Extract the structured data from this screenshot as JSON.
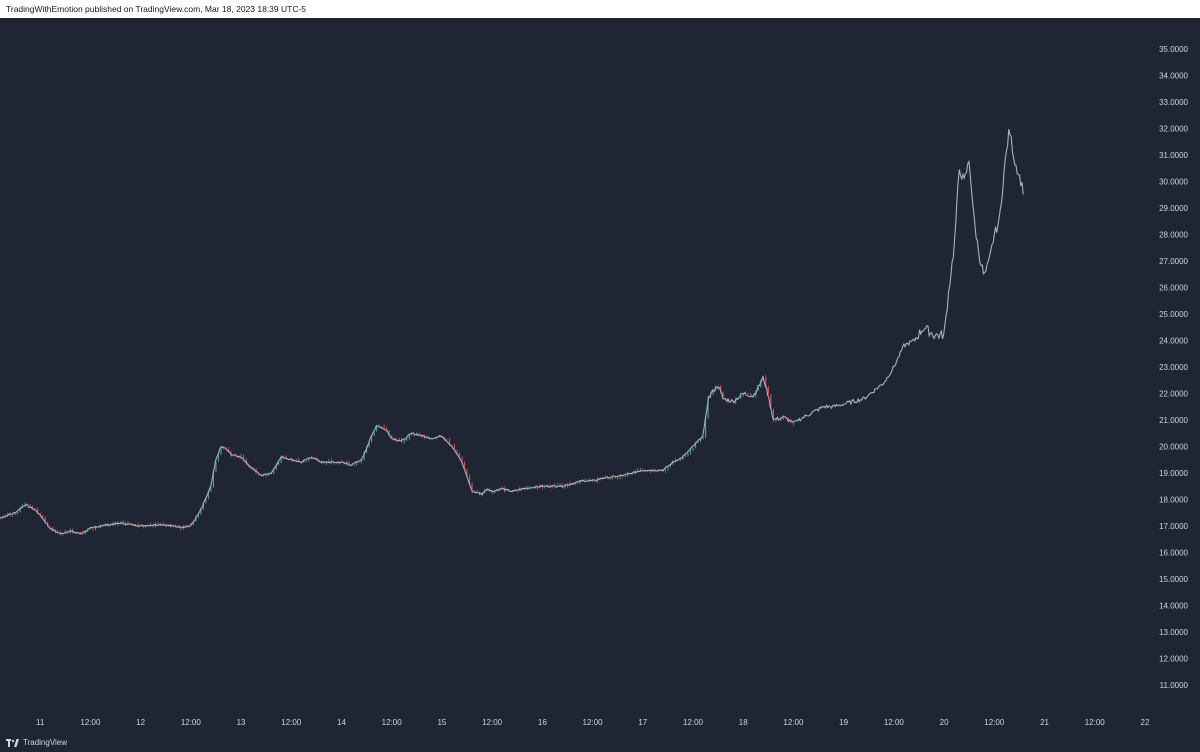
{
  "header": {
    "text": "TradingWithEmotion published on TradingView.com, Mar 18, 2023 18:39 UTC-5"
  },
  "footer": {
    "brand": "TradingView",
    "logo_icon": "tradingview-logo-icon"
  },
  "colors": {
    "background": "#1f2532",
    "up": "#4fa07a",
    "down": "#d4504f",
    "line": "#a9b0bf",
    "text": "#d1d4dc"
  },
  "chart_data": {
    "type": "line",
    "candles_overlay": "candlestick segment (green up / red down) from day 11 to day 18 afternoon",
    "y_axis": {
      "range": [
        10.5,
        35.4
      ],
      "ticks": [
        "35.0000",
        "34.0000",
        "33.0000",
        "32.0000",
        "31.0000",
        "30.0000",
        "29.0000",
        "28.0000",
        "27.0000",
        "26.0000",
        "25.0000",
        "24.0000",
        "23.0000",
        "22.0000",
        "21.0000",
        "20.0000",
        "19.0000",
        "18.0000",
        "17.0000",
        "16.0000",
        "15.0000",
        "14.0000",
        "13.0000",
        "12.0000",
        "11.0000"
      ],
      "tick_values": [
        35,
        34,
        33,
        32,
        31,
        30,
        29,
        28,
        27,
        26,
        25,
        24,
        23,
        22,
        21,
        20,
        19,
        18,
        17,
        16,
        15,
        14,
        13,
        12,
        11
      ]
    },
    "x_axis": {
      "range": [
        10.6,
        22.05
      ],
      "ticks": [
        "11",
        "12:00",
        "12",
        "12:00",
        "13",
        "12:00",
        "14",
        "12:00",
        "15",
        "12:00",
        "16",
        "12:00",
        "17",
        "12:00",
        "18",
        "12:00",
        "19",
        "12:00",
        "20",
        "12:00",
        "21",
        "12:00",
        "22"
      ],
      "tick_values": [
        11,
        11.5,
        12,
        12.5,
        13,
        13.5,
        14,
        14.5,
        15,
        15.5,
        16,
        16.5,
        17,
        17.5,
        18,
        18.5,
        19,
        19.5,
        20,
        20.5,
        21,
        21.5,
        22
      ]
    },
    "series": [
      {
        "x": [
          10.6,
          10.75,
          10.85,
          10.95,
          11.0,
          11.1,
          11.2,
          11.3,
          11.4,
          11.5,
          11.6,
          11.8,
          12.0,
          12.2,
          12.4,
          12.5,
          12.6,
          12.7,
          12.75,
          12.8,
          12.85,
          12.9,
          13.0,
          13.1,
          13.2,
          13.3,
          13.4,
          13.5,
          13.6,
          13.7,
          13.8,
          14.0,
          14.1,
          14.2,
          14.3,
          14.35,
          14.4,
          14.45,
          14.5,
          14.6,
          14.7,
          14.8,
          14.9,
          15.0,
          15.1,
          15.2,
          15.3,
          15.4,
          15.45,
          15.5,
          15.6,
          15.7,
          15.8,
          16.0,
          16.2,
          16.4,
          16.5,
          16.6,
          16.8,
          17.0,
          17.2,
          17.3,
          17.4,
          17.5,
          17.6,
          17.65,
          17.7,
          17.75,
          17.8,
          17.9,
          18.0,
          18.1,
          18.2,
          18.25,
          18.3,
          18.4,
          18.5,
          18.6,
          18.7,
          18.8,
          18.9,
          19.0,
          19.2,
          19.4,
          19.5,
          19.6,
          19.7,
          19.8,
          19.9,
          20.0,
          20.05,
          20.1,
          20.15,
          20.2,
          20.25,
          20.3,
          20.35,
          20.4,
          20.45,
          20.5,
          20.55,
          20.6,
          20.65,
          20.7,
          20.75,
          20.8
        ],
        "y": [
          17.3,
          17.5,
          17.8,
          17.6,
          17.4,
          16.9,
          16.7,
          16.8,
          16.7,
          16.9,
          17.0,
          17.1,
          17.0,
          17.05,
          16.95,
          17.0,
          17.6,
          18.5,
          19.5,
          20.0,
          19.9,
          19.7,
          19.6,
          19.2,
          18.9,
          19.0,
          19.6,
          19.5,
          19.4,
          19.6,
          19.4,
          19.4,
          19.3,
          19.5,
          20.4,
          20.8,
          20.7,
          20.6,
          20.3,
          20.2,
          20.5,
          20.4,
          20.3,
          20.4,
          20.0,
          19.4,
          18.3,
          18.2,
          18.4,
          18.3,
          18.4,
          18.3,
          18.4,
          18.5,
          18.5,
          18.7,
          18.7,
          18.8,
          18.9,
          19.1,
          19.1,
          19.4,
          19.6,
          20.0,
          20.4,
          21.8,
          22.1,
          22.3,
          21.8,
          21.7,
          22.0,
          21.9,
          22.6,
          21.9,
          21.0,
          21.1,
          20.9,
          21.1,
          21.3,
          21.5,
          21.5,
          21.6,
          21.8,
          22.4,
          23.0,
          23.8,
          24.0,
          24.5,
          24.2,
          24.2,
          26.0,
          27.5,
          30.5,
          30.0,
          30.8,
          28.5,
          27.2,
          26.4,
          27.0,
          28.0,
          28.5,
          30.5,
          32.0,
          30.8,
          30.2,
          29.5
        ]
      }
    ]
  }
}
